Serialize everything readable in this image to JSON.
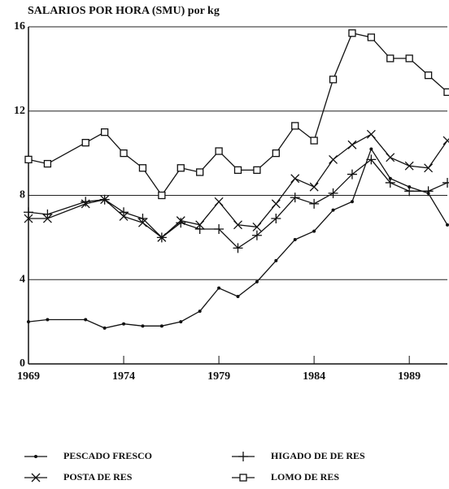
{
  "chart_data": {
    "type": "line",
    "title": "SALARIOS POR HORA (SMU) por kg",
    "x": [
      1969,
      1970,
      1972,
      1973,
      1974,
      1975,
      1976,
      1977,
      1978,
      1979,
      1980,
      1981,
      1982,
      1983,
      1984,
      1985,
      1986,
      1987,
      1988,
      1989,
      1990,
      1991
    ],
    "series": [
      {
        "name": "PESCADO FRESCO",
        "color": "#111111",
        "marker": "dot",
        "values": [
          2.0,
          2.1,
          2.1,
          1.7,
          1.9,
          1.8,
          1.8,
          2.0,
          2.5,
          3.6,
          3.2,
          3.9,
          4.9,
          5.9,
          6.3,
          7.3,
          7.7,
          10.2,
          8.8,
          8.4,
          8.1,
          6.6
        ]
      },
      {
        "name": "HIGADO DE DE RES",
        "color": "#111111",
        "marker": "plus",
        "values": [
          7.2,
          7.1,
          7.7,
          7.8,
          7.2,
          6.9,
          6.0,
          6.7,
          6.4,
          6.4,
          5.5,
          6.1,
          6.9,
          7.9,
          7.6,
          8.1,
          9.0,
          9.7,
          8.6,
          8.2,
          8.2,
          8.6
        ]
      },
      {
        "name": "POSTA DE RES",
        "color": "#111111",
        "marker": "cross",
        "values": [
          6.9,
          6.9,
          7.6,
          7.8,
          7.0,
          6.7,
          6.0,
          6.8,
          6.6,
          7.7,
          6.6,
          6.5,
          7.6,
          8.8,
          8.4,
          9.7,
          10.4,
          10.9,
          9.8,
          9.4,
          9.3,
          10.6
        ]
      },
      {
        "name": "LOMO DE RES",
        "color": "#111111",
        "marker": "square",
        "values": [
          9.7,
          9.5,
          10.5,
          11.0,
          10.0,
          9.3,
          8.0,
          9.3,
          9.1,
          10.1,
          9.2,
          9.2,
          10.0,
          11.3,
          10.6,
          13.5,
          15.7,
          15.5,
          14.5,
          14.5,
          13.7,
          12.9
        ]
      }
    ],
    "xlim": [
      1969,
      1991
    ],
    "xticks": [
      1969,
      1974,
      1979,
      1984,
      1989
    ],
    "ylim": [
      0,
      16
    ],
    "yticks": [
      0,
      4,
      8,
      12,
      16
    ],
    "grid": true,
    "legend": "bottom"
  }
}
